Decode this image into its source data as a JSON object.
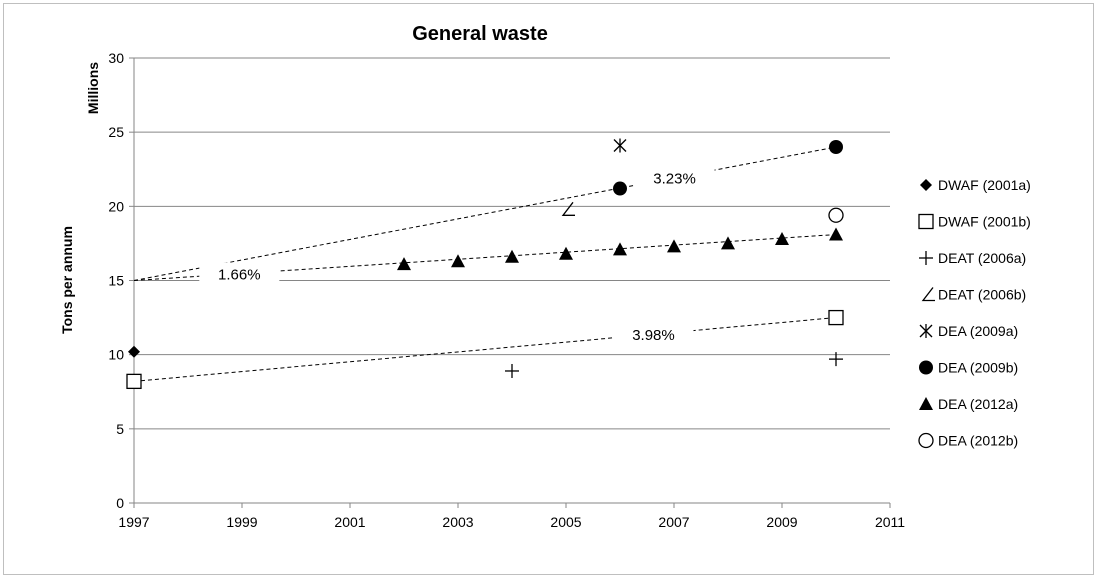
{
  "chart_data": {
    "type": "scatter",
    "title": "General waste",
    "ylabel": "Tons per annum",
    "yunit_label": "Millions",
    "xlabel": "",
    "xlim": [
      1997,
      2011
    ],
    "ylim": [
      0,
      30
    ],
    "x_ticks": [
      1997,
      1999,
      2001,
      2003,
      2005,
      2007,
      2009,
      2011
    ],
    "y_ticks": [
      0,
      5,
      10,
      15,
      20,
      25,
      30
    ],
    "grid": "horizontal",
    "legend_position": "right",
    "series": [
      {
        "name": "DWAF (2001a)",
        "marker": "diamond",
        "points": [
          [
            1997,
            10.2
          ]
        ]
      },
      {
        "name": "DWAF (2001b)",
        "marker": "square-open",
        "points": [
          [
            1997,
            8.2
          ],
          [
            2010,
            12.5
          ]
        ]
      },
      {
        "name": "DEAT (2006a)",
        "marker": "plus",
        "points": [
          [
            2004,
            8.9
          ],
          [
            2010,
            9.7
          ]
        ]
      },
      {
        "name": "DEAT (2006b)",
        "marker": "angle",
        "points": [
          [
            2005,
            19.8
          ]
        ]
      },
      {
        "name": "DEA (2009a)",
        "marker": "asterisk",
        "points": [
          [
            2006,
            24.1
          ]
        ]
      },
      {
        "name": "DEA (2009b)",
        "marker": "circle",
        "points": [
          [
            2006,
            21.2
          ],
          [
            2010,
            24.0
          ]
        ]
      },
      {
        "name": "DEA (2012a)",
        "marker": "triangle",
        "points": [
          [
            2002,
            16.1
          ],
          [
            2003,
            16.3
          ],
          [
            2004,
            16.6
          ],
          [
            2005,
            16.8
          ],
          [
            2006,
            17.1
          ],
          [
            2007,
            17.3
          ],
          [
            2008,
            17.5
          ],
          [
            2009,
            17.8
          ],
          [
            2010,
            18.1
          ]
        ]
      },
      {
        "name": "DEA (2012b)",
        "marker": "circle-open",
        "points": [
          [
            2010,
            19.4
          ]
        ]
      }
    ],
    "trend_lines": [
      {
        "label": "3.23%",
        "from": [
          1997,
          15.0
        ],
        "to": [
          2010,
          24.0
        ]
      },
      {
        "label": "1.66%",
        "from": [
          1997,
          15.0
        ],
        "to": [
          2010,
          18.1
        ]
      },
      {
        "label": "3.98%",
        "from": [
          1997,
          8.2
        ],
        "to": [
          2010,
          12.5
        ]
      }
    ]
  }
}
